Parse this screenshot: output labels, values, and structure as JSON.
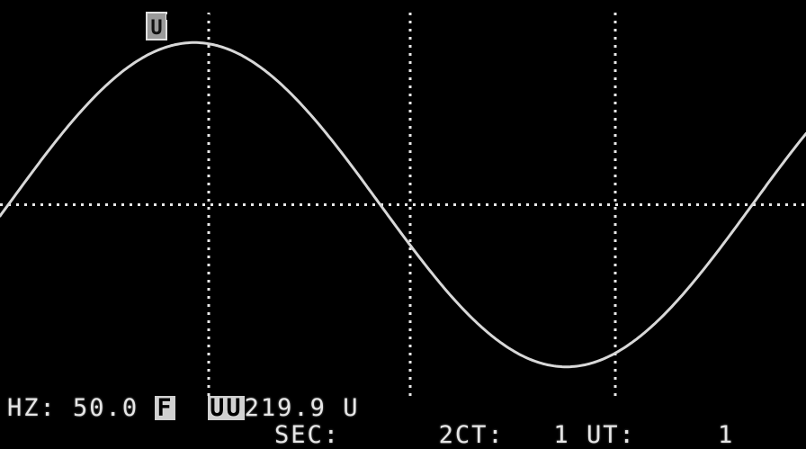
{
  "screen": {
    "background": "#000000",
    "trace_color": "#d8d8d8",
    "grid_color": "#e8e8e8"
  },
  "marker": {
    "label": "U"
  },
  "readout_line1": {
    "freq_label": "HZ:",
    "freq_value": "50.0",
    "mode_box": "F",
    "voltage_prefix": "UU",
    "voltage_value": "219.9",
    "voltage_unit": "U"
  },
  "readout_line2": {
    "sec_label": "SEC:",
    "sec_value": "2",
    "ct_label": "CT:",
    "ct_value": "1",
    "ut_label": "UT:",
    "ut_value": "1"
  },
  "chart_data": {
    "type": "line",
    "series": [
      {
        "waveform": "sine",
        "x": [
          0,
          30,
          60,
          90,
          120,
          150,
          180,
          210,
          240,
          270,
          300,
          330,
          360,
          390
        ],
        "values": [
          -0.07,
          0.43,
          0.83,
          0.99,
          0.87,
          0.52,
          0.05,
          -0.45,
          -0.84,
          -0.99,
          -0.86,
          -0.49,
          -0.02,
          0.47
        ]
      }
    ],
    "xlim": [
      0,
      390
    ],
    "ylim": [
      -1.25,
      1.25
    ],
    "grid": true
  }
}
